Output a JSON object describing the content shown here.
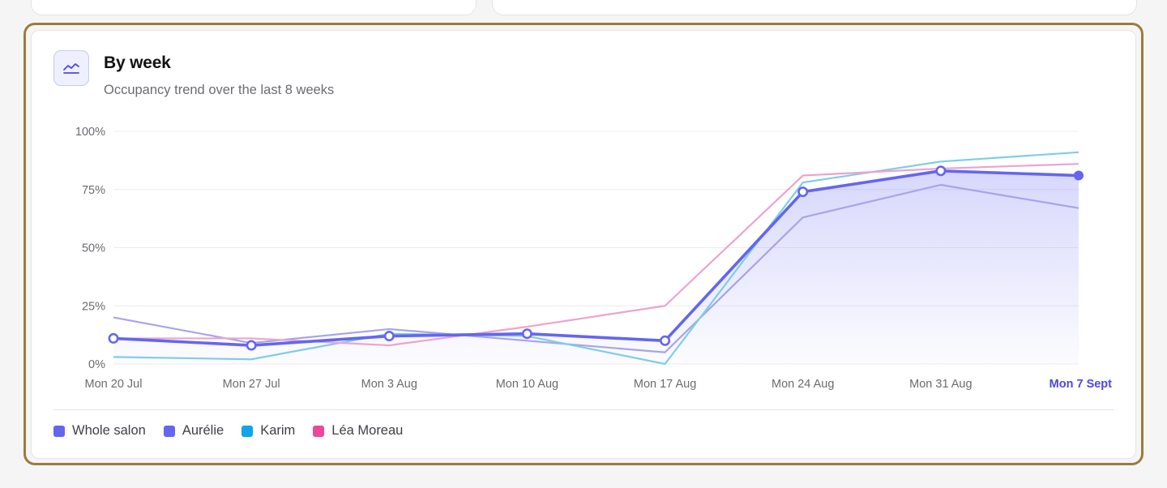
{
  "card": {
    "title": "By week",
    "subtitle": "Occupancy trend over the last 8 weeks",
    "icon": "line-chart-icon"
  },
  "colors": {
    "primary": "#6366f1",
    "highlight_label": "#4f46e5",
    "frame": "#9d7b3e",
    "aurelie": "#6366f1",
    "karim": "#0ea5e9",
    "lea": "#ec4899"
  },
  "chart_data": {
    "type": "line",
    "title": "By week",
    "subtitle": "Occupancy trend over the last 8 weeks",
    "xlabel": "",
    "ylabel": "",
    "x": [
      "Mon 20 Jul",
      "Mon 27 Jul",
      "Mon 3 Aug",
      "Mon 10 Aug",
      "Mon 17 Aug",
      "Mon 24 Aug",
      "Mon 31 Aug",
      "Mon 7 Sept"
    ],
    "highlighted_x": "Mon 7 Sept",
    "y_ticks": [
      "100%",
      "75%",
      "50%",
      "25%",
      "0%"
    ],
    "ylim": [
      0,
      100
    ],
    "grid": true,
    "legend_position": "bottom-left",
    "series": [
      {
        "name": "Whole salon",
        "values": [
          11,
          8,
          12,
          13,
          10,
          74,
          83,
          81
        ],
        "color": "#6366f1",
        "area": true
      },
      {
        "name": "Aurélie",
        "values": [
          20,
          9,
          15,
          10,
          5,
          63,
          77,
          67
        ],
        "color": "#a7a4ec"
      },
      {
        "name": "Karim",
        "values": [
          3,
          2,
          13,
          12,
          0,
          78,
          87,
          91
        ],
        "color": "#7fcde6"
      },
      {
        "name": "Léa Moreau",
        "values": [
          11,
          11,
          8,
          16,
          25,
          81,
          84,
          86
        ],
        "color": "#eda3cd"
      }
    ]
  },
  "legend": [
    {
      "label": "Whole salon",
      "color": "#6366f1"
    },
    {
      "label": "Aurélie",
      "color": "#6366f1"
    },
    {
      "label": "Karim",
      "color": "#0ea5e9"
    },
    {
      "label": "Léa Moreau",
      "color": "#ec4899"
    }
  ]
}
